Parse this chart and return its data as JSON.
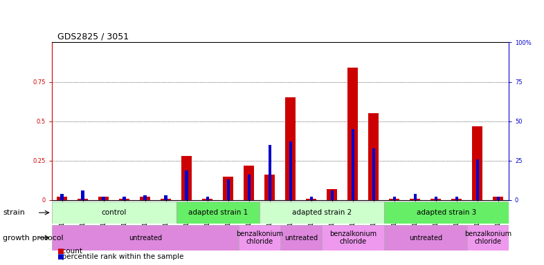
{
  "title": "GDS2825 / 3051",
  "samples": [
    "GSM153894",
    "GSM154801",
    "GSM154802",
    "GSM154803",
    "GSM154804",
    "GSM154805",
    "GSM154808",
    "GSM154814",
    "GSM154819",
    "GSM154823",
    "GSM154806",
    "GSM154809",
    "GSM154812",
    "GSM154816",
    "GSM154820",
    "GSM154824",
    "GSM154807",
    "GSM154810",
    "GSM154813",
    "GSM154818",
    "GSM154821",
    "GSM154825"
  ],
  "red_values": [
    0.02,
    0.01,
    0.02,
    0.01,
    0.02,
    0.01,
    0.28,
    0.01,
    0.15,
    0.22,
    0.16,
    0.65,
    0.01,
    0.07,
    0.84,
    0.55,
    0.01,
    0.01,
    0.01,
    0.01,
    0.47,
    0.02
  ],
  "blue_values": [
    4,
    6,
    2,
    2,
    3,
    3,
    19,
    2,
    13,
    16,
    35,
    37,
    2,
    6,
    45,
    33,
    2,
    4,
    2,
    2,
    26,
    2
  ],
  "strain_groups": [
    {
      "label": "control",
      "start": 0,
      "end": 5,
      "color": "#ccffcc"
    },
    {
      "label": "adapted strain 1",
      "start": 6,
      "end": 9,
      "color": "#66ee66"
    },
    {
      "label": "adapted strain 2",
      "start": 10,
      "end": 15,
      "color": "#ccffcc"
    },
    {
      "label": "adapted strain 3",
      "start": 16,
      "end": 21,
      "color": "#66ee66"
    }
  ],
  "growth_groups": [
    {
      "label": "untreated",
      "start": 0,
      "end": 8,
      "color": "#dd88dd"
    },
    {
      "label": "benzalkonium\nchloride",
      "start": 9,
      "end": 10,
      "color": "#ee99ee"
    },
    {
      "label": "untreated",
      "start": 11,
      "end": 12,
      "color": "#dd88dd"
    },
    {
      "label": "benzalkonium\nchloride",
      "start": 13,
      "end": 15,
      "color": "#ee99ee"
    },
    {
      "label": "untreated",
      "start": 16,
      "end": 19,
      "color": "#dd88dd"
    },
    {
      "label": "benzalkonium\nchloride",
      "start": 20,
      "end": 21,
      "color": "#ee99ee"
    }
  ],
  "red_color": "#cc0000",
  "blue_color": "#0000cc",
  "title_fontsize": 9,
  "tick_fontsize": 6,
  "label_fontsize": 7.5,
  "row_label_fontsize": 8,
  "legend_fontsize": 7.5
}
